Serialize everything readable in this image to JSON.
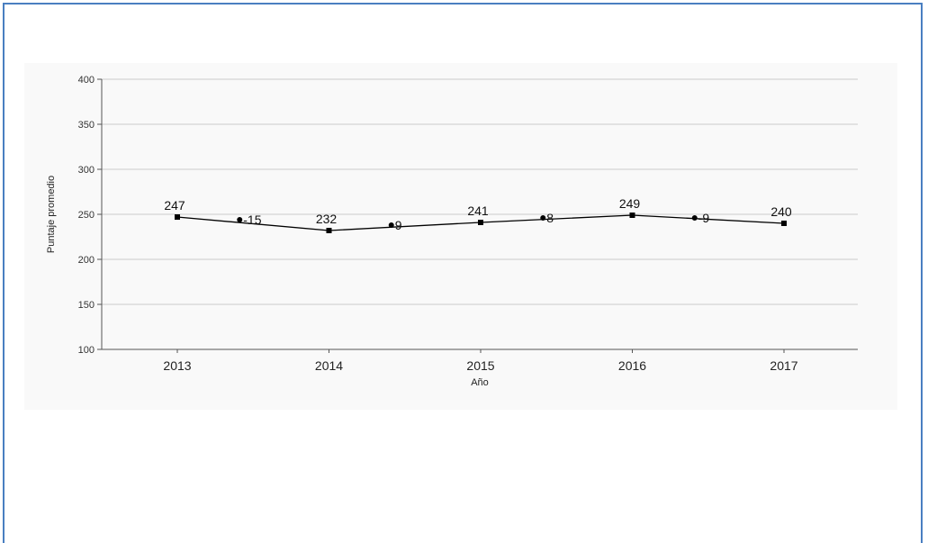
{
  "chart_data": {
    "type": "line",
    "xlabel": "Año",
    "ylabel": "Puntaje promedio",
    "ylim": [
      100,
      400
    ],
    "yticks": [
      100,
      150,
      200,
      250,
      300,
      350,
      400
    ],
    "categories": [
      "2013",
      "2014",
      "2015",
      "2016",
      "2017"
    ],
    "series": [
      {
        "values": [
          247,
          232,
          241,
          249,
          240
        ]
      }
    ],
    "value_labels": [
      "247",
      "232",
      "241",
      "249",
      "240"
    ],
    "differences": [
      {
        "between": [
          "2013",
          "2014"
        ],
        "label": "-15"
      },
      {
        "between": [
          "2014",
          "2015"
        ],
        "label": "9"
      },
      {
        "between": [
          "2015",
          "2016"
        ],
        "label": "8"
      },
      {
        "between": [
          "2016",
          "2017"
        ],
        "label": "-9"
      }
    ],
    "grid": true,
    "colors": {
      "line": "#000000",
      "grid": "#cccccc",
      "axis": "#555555",
      "frame": "#4a7fc1"
    }
  }
}
